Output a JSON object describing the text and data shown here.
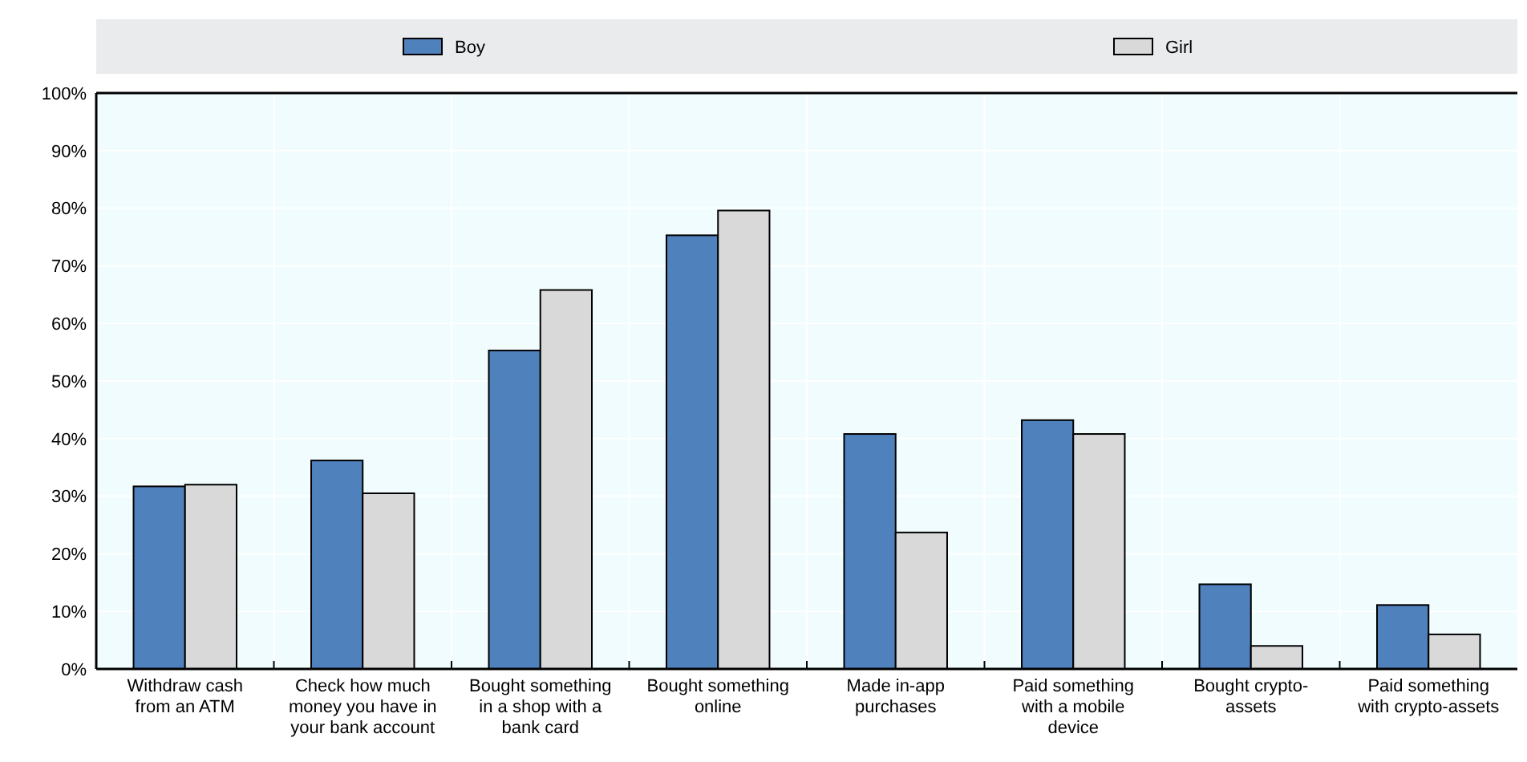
{
  "chart_data": {
    "type": "bar",
    "categories": [
      "Withdraw cash\nfrom an ATM",
      "Check how much\nmoney you have in\nyour bank account",
      "Bought something\nin a shop with a\nbank card",
      "Bought something\nonline",
      "Made in-app\npurchases",
      "Paid something\nwith a mobile\ndevice",
      "Bought crypto-\nassets",
      "Paid something\nwith crypto-assets"
    ],
    "series": [
      {
        "name": "Boy",
        "color": "#4f81bd",
        "values": [
          31.7,
          36.2,
          55.3,
          75.3,
          40.8,
          43.2,
          14.7,
          11.1
        ]
      },
      {
        "name": "Girl",
        "color": "#d9d9d9",
        "values": [
          32.0,
          30.5,
          65.8,
          79.6,
          23.7,
          40.8,
          4.0,
          6.0
        ]
      }
    ],
    "ylim": [
      0,
      100
    ],
    "yticks": [
      {
        "value": 0,
        "label": "0%"
      },
      {
        "value": 10,
        "label": "10%"
      },
      {
        "value": 20,
        "label": "20%"
      },
      {
        "value": 30,
        "label": "30%"
      },
      {
        "value": 40,
        "label": "40%"
      },
      {
        "value": 50,
        "label": "50%"
      },
      {
        "value": 60,
        "label": "60%"
      },
      {
        "value": 70,
        "label": "70%"
      },
      {
        "value": 80,
        "label": "80%"
      },
      {
        "value": 90,
        "label": "90%"
      },
      {
        "value": 100,
        "label": "100%"
      }
    ],
    "grid": true,
    "legend": "top"
  }
}
